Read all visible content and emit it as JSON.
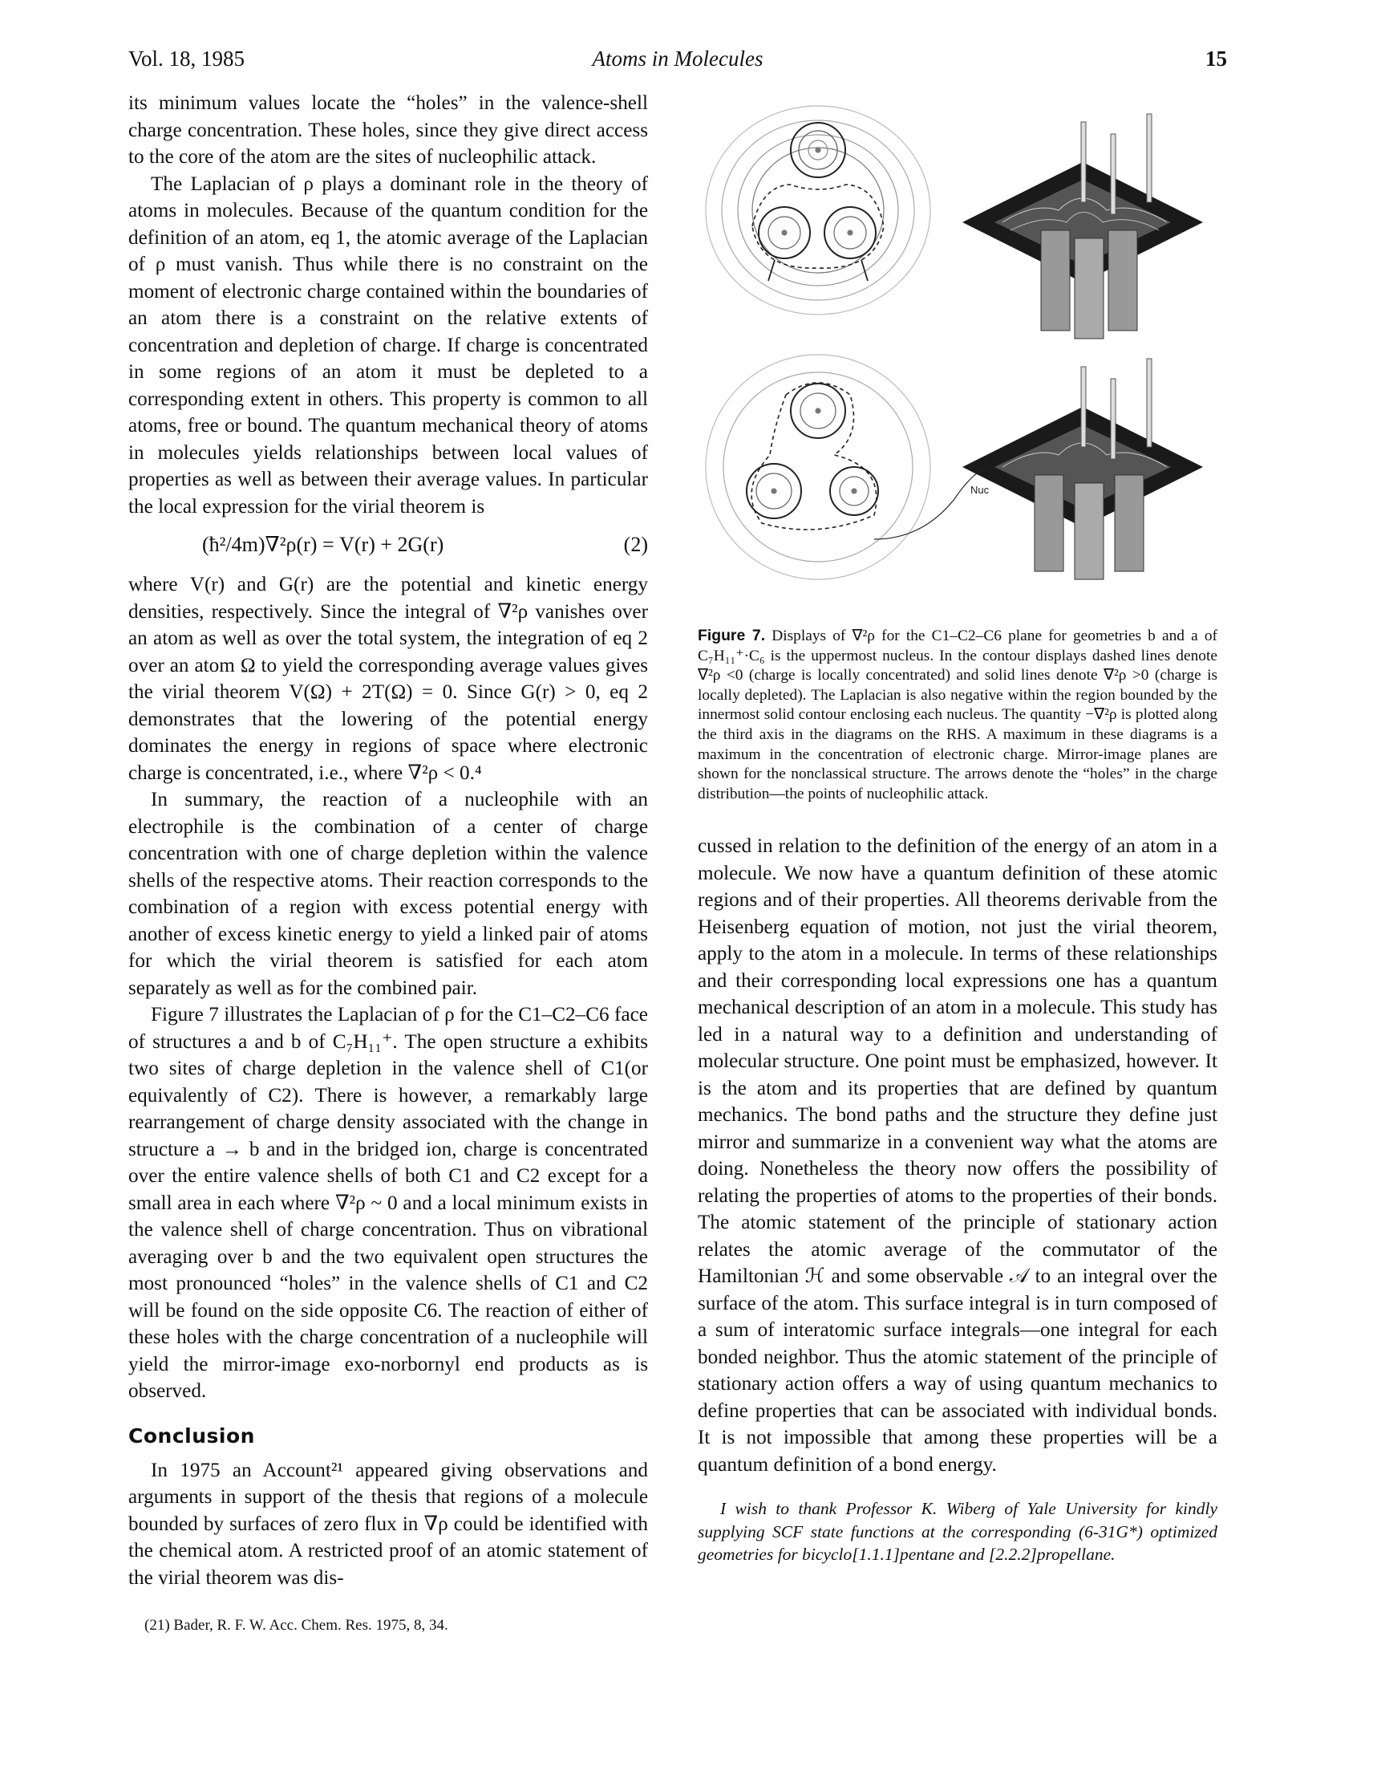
{
  "header": {
    "volume": "Vol. 18, 1985",
    "running_title": "Atoms in Molecules",
    "page_number": "15"
  },
  "left_column": {
    "p1": "its minimum values locate the “holes” in the valence-shell charge concentration. These holes, since they give direct access to the core of the atom are the sites of nucleophilic attack.",
    "p2": "The Laplacian of ρ plays a dominant role in the theory of atoms in molecules. Because of the quantum condition for the definition of an atom, eq 1, the atomic average of the Laplacian of ρ must vanish. Thus while there is no constraint on the moment of electronic charge contained within the boundaries of an atom there is a constraint on the relative extents of concentration and depletion of charge. If charge is concentrated in some regions of an atom it must be depleted to a corresponding extent in others. This property is common to all atoms, free or bound. The quantum mechanical theory of atoms in molecules yields relationships between local values of properties as well as between their average values. In particular the local expression for the virial theorem is",
    "equation": "(ħ²/4m)∇²ρ(r) = V(r) + 2G(r)",
    "equation_number": "(2)",
    "p3": "where V(r) and G(r) are the potential and kinetic energy densities, respectively. Since the integral of ∇²ρ vanishes over an atom as well as over the total system, the integration of eq 2 over an atom Ω to yield the corresponding average values gives the virial theorem V(Ω) + 2T(Ω) = 0. Since G(r) > 0, eq 2 demonstrates that the lowering of the potential energy dominates the energy in regions of space where electronic charge is concentrated, i.e., where ∇²ρ < 0.⁴",
    "p4": "In summary, the reaction of a nucleophile with an electrophile is the combination of a center of charge concentration with one of charge depletion within the valence shells of the respective atoms. Their reaction corresponds to the combination of a region with excess potential energy with another of excess kinetic energy to yield a linked pair of atoms for which the virial theorem is satisfied for each atom separately as well as for the combined pair.",
    "p5": "Figure 7 illustrates the Laplacian of ρ for the C1–C2–C6 face of structures a and b of C₇H₁₁⁺. The open structure a exhibits two sites of charge depletion in the valence shell of C1(or equivalently of C2). There is however, a remarkably large rearrangement of charge density associated with the change in structure a → b and in the bridged ion, charge is concentrated over the entire valence shells of both C1 and C2 except for a small area in each where ∇²ρ ~ 0 and a local minimum exists in the valence shell of charge concentration. Thus on vibrational averaging over b and the two equivalent open structures the most pronounced “holes” in the valence shells of C1 and C2 will be found on the side opposite C6. The reaction of either of these holes with the charge concentration of a nucleophile will yield the mirror-image exo-norbornyl end products as is observed.",
    "section_heading": "Conclusion",
    "p6": "In 1975 an Account²¹ appeared giving observations and arguments in support of the thesis that regions of a molecule bounded by surfaces of zero flux in ∇ρ could be identified with the chemical atom. A restricted proof of an atomic statement of the virial theorem was dis-",
    "footnote": "(21) Bader, R. F. W. Acc. Chem. Res. 1975, 8, 34."
  },
  "figure": {
    "nuc_label": "Nuc",
    "caption_label": "Figure 7.",
    "caption_text": "Displays of ∇²ρ for the C1–C2–C6 plane for geometries b and a of C₇H₁₁⁺·C₆ is the uppermost nucleus. In the contour displays dashed lines denote ∇²ρ <0 (charge is locally concentrated) and solid lines denote ∇²ρ >0 (charge is locally depleted). The Laplacian is also negative within the region bounded by the innermost solid contour enclosing each nucleus. The quantity −∇²ρ is plotted along the third axis in the diagrams on the RHS. A maximum in these diagrams is a maximum in the concentration of electronic charge. Mirror-image planes are shown for the nonclassical structure. The arrows denote the “holes” in the charge distribution—the points of nucleophilic attack."
  },
  "right_column": {
    "p1": "cussed in relation to the definition of the energy of an atom in a molecule. We now have a quantum definition of these atomic regions and of their properties. All theorems derivable from the Heisenberg equation of motion, not just the virial theorem, apply to the atom in a molecule. In terms of these relationships and their corresponding local expressions one has a quantum mechanical description of an atom in a molecule. This study has led in a natural way to a definition and understanding of molecular structure. One point must be emphasized, however. It is the atom and its properties that are defined by quantum mechanics. The bond paths and the structure they define just mirror and summarize in a convenient way what the atoms are doing. Nonetheless the theory now offers the possibility of relating the properties of atoms to the properties of their bonds. The atomic statement of the principle of stationary action relates the atomic average of the commutator of the Hamiltonian ℋ and some observable 𝒜 to an integral over the surface of the atom. This surface integral is in turn composed of a sum of interatomic surface integrals—one integral for each bonded neighbor. Thus the atomic statement of the principle of stationary action offers a way of using quantum mechanics to define properties that can be associated with individual bonds. It is not impossible that among these properties will be a quantum definition of a bond energy.",
    "acknowledgment": "I wish to thank Professor K. Wiberg of Yale University for kindly supplying SCF state functions at the corresponding (6-31G*) optimized geometries for bicyclo[1.1.1]pentane and [2.2.2]propellane."
  }
}
